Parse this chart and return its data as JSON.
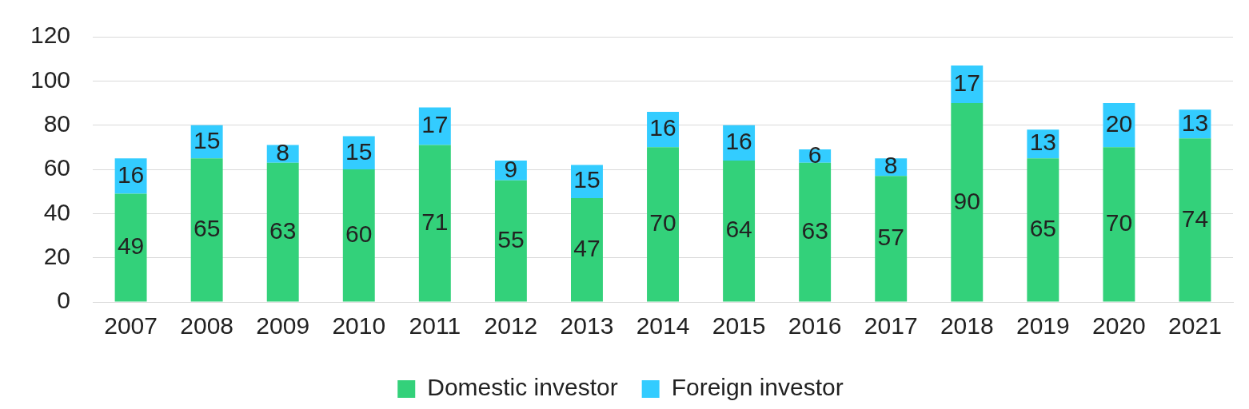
{
  "chart_data": {
    "type": "bar",
    "stacked": true,
    "categories": [
      "2007",
      "2008",
      "2009",
      "2010",
      "2011",
      "2012",
      "2013",
      "2014",
      "2015",
      "2016",
      "2017",
      "2018",
      "2019",
      "2020",
      "2021"
    ],
    "series": [
      {
        "name": "Domestic investor",
        "color": "#33d17a",
        "values": [
          49,
          65,
          63,
          60,
          71,
          55,
          47,
          70,
          64,
          63,
          57,
          90,
          65,
          70,
          74
        ]
      },
      {
        "name": "Foreign investor",
        "color": "#33ccff",
        "values": [
          16,
          15,
          8,
          15,
          17,
          9,
          15,
          16,
          16,
          6,
          8,
          17,
          13,
          20,
          13
        ]
      }
    ],
    "ylim": [
      0,
      120
    ],
    "yticks": [
      0,
      20,
      40,
      60,
      80,
      100,
      120
    ],
    "grid": "y",
    "legend": "bottom",
    "data_labels": true
  }
}
